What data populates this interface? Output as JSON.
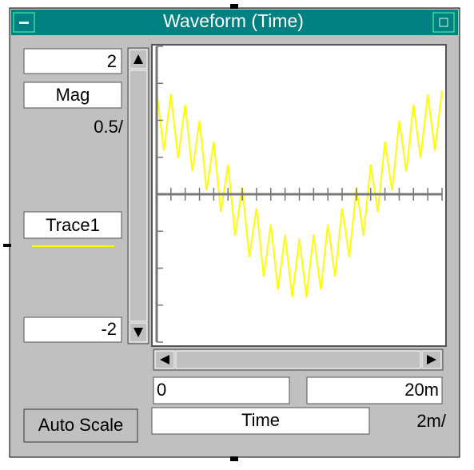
{
  "window": {
    "title": "Waveform (Time)",
    "auto_scale_button": "Auto Scale",
    "y_field_label": "Mag",
    "x_field_label": "Time"
  },
  "chart_data": {
    "type": "line",
    "y_per_div": "0.5/",
    "x_per_div": "2m/",
    "ylim": [
      -2,
      2
    ],
    "xlim": [
      0,
      {
        "value": 0.02,
        "label": "20m"
      }
    ],
    "yticks": [
      -2,
      -1.5,
      -1,
      -0.5,
      0,
      0.5,
      1,
      1.5,
      2
    ],
    "xticks": [
      0,
      0.001,
      0.002,
      0.003,
      0.004,
      0.005,
      0.006,
      0.007,
      0.008,
      0.009,
      0.01,
      0.011,
      0.012,
      0.013,
      0.014,
      0.015,
      0.016,
      0.017,
      0.018,
      0.019,
      0.02
    ],
    "series": [
      {
        "name": "Trace1",
        "color": "#ffff00",
        "x": [
          0,
          0.0005,
          0.001,
          0.0015,
          0.002,
          0.0025,
          0.003,
          0.0035,
          0.004,
          0.0045,
          0.005,
          0.0055,
          0.006,
          0.0065,
          0.007,
          0.0075,
          0.008,
          0.0085,
          0.009,
          0.0095,
          0.01,
          0.0105,
          0.011,
          0.0115,
          0.012,
          0.0125,
          0.013,
          0.0135,
          0.014,
          0.0145,
          0.015,
          0.0155,
          0.016,
          0.0165,
          0.017,
          0.0175,
          0.018,
          0.0185,
          0.019,
          0.0195,
          0.02
        ],
        "values": [
          1.4,
          0.59,
          1.35,
          0.49,
          1.21,
          0.31,
          0.99,
          0.05,
          0.71,
          -0.24,
          0.4,
          -0.56,
          0.09,
          -0.85,
          -0.19,
          -1.11,
          -0.41,
          -1.29,
          -0.55,
          -1.39,
          -0.6,
          -1.39,
          -0.55,
          -1.29,
          -0.41,
          -1.11,
          -0.19,
          -0.85,
          0.09,
          -0.56,
          0.4,
          -0.24,
          0.71,
          0.05,
          0.99,
          0.31,
          1.21,
          0.49,
          1.35,
          0.59,
          1.4
        ]
      }
    ]
  }
}
